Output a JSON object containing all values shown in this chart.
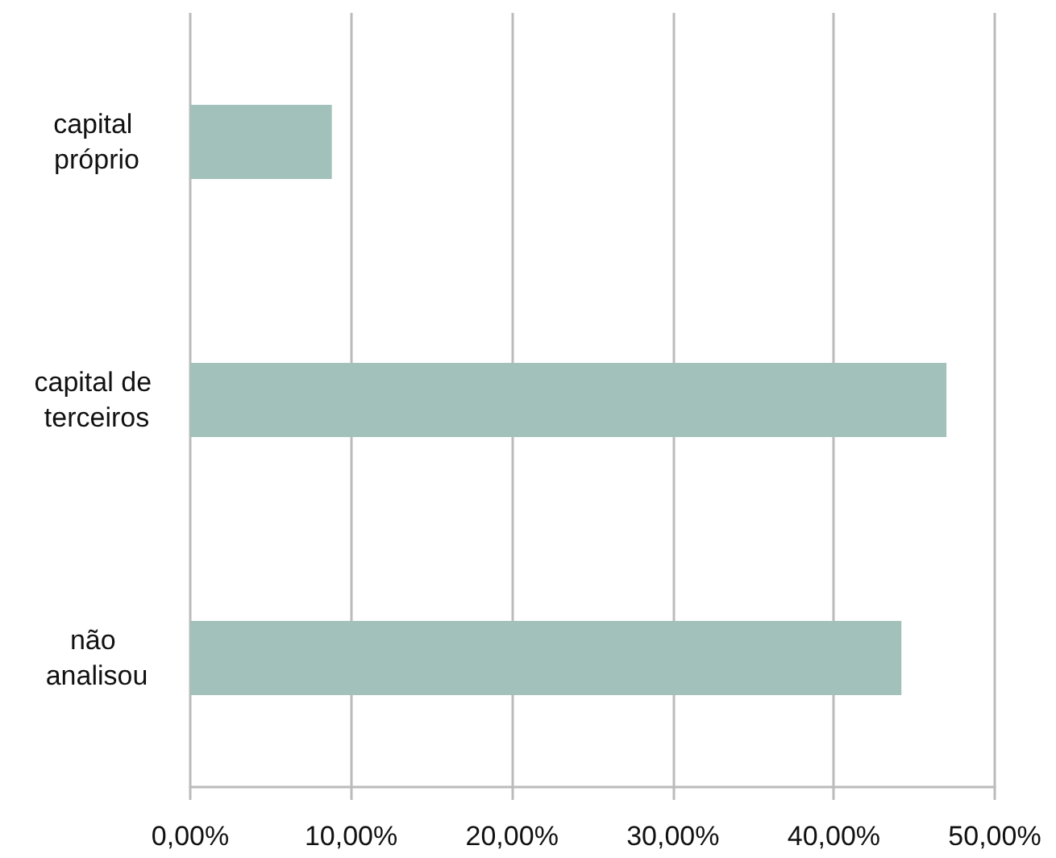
{
  "chart_data": {
    "type": "bar",
    "orientation": "horizontal",
    "categories": [
      "capital próprio",
      "capital de terceiros",
      "não analisou"
    ],
    "values": [
      8.8,
      47.0,
      44.2
    ],
    "color": "#a2c1ba",
    "xlim": [
      0,
      50
    ],
    "xticks": [
      {
        "value": 0,
        "label": "0,00%"
      },
      {
        "value": 10,
        "label": "10,00%"
      },
      {
        "value": 20,
        "label": "20,00%"
      },
      {
        "value": 30,
        "label": "30,00%"
      },
      {
        "value": 40,
        "label": "40,00%"
      },
      {
        "value": 50,
        "label": "50,00%"
      }
    ],
    "grid": "x"
  }
}
